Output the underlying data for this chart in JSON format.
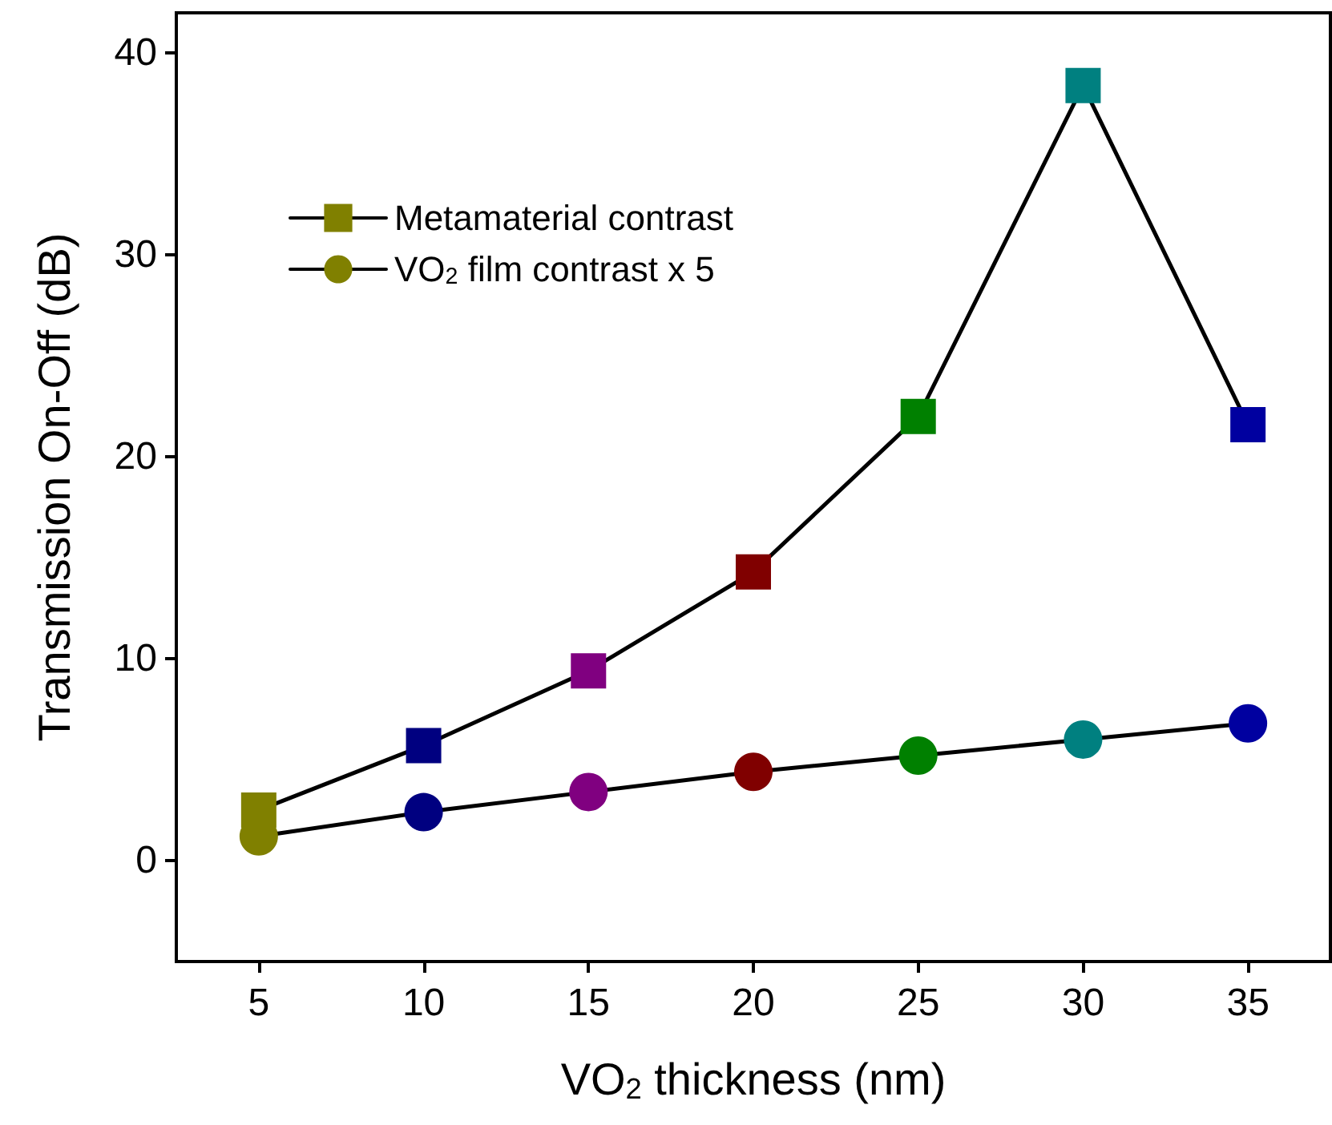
{
  "chart_data": {
    "type": "line",
    "xlabel": "VO$_{2}$ thickness (nm)",
    "ylabel": "Transmission On-Off (dB)",
    "x": [
      5,
      10,
      15,
      20,
      25,
      30,
      35
    ],
    "series": [
      {
        "name": "Metamaterial contrast",
        "color": "#000000",
        "marker": "square",
        "colors": [
          "#808000",
          "#000080",
          "#800080",
          "#800000",
          "#008000",
          "#008080",
          "#0000a0"
        ],
        "values": [
          2.5,
          5.7,
          9.4,
          14.3,
          22.0,
          38.4,
          21.6
        ]
      },
      {
        "name": "VO$_{2}$ film contrast x 5",
        "color": "#000000",
        "marker": "circle",
        "colors": [
          "#808000",
          "#000080",
          "#800080",
          "#800000",
          "#008000",
          "#008080",
          "#0000a0"
        ],
        "values": [
          1.2,
          2.4,
          3.4,
          4.4,
          5.2,
          6.0,
          6.8
        ]
      }
    ],
    "xlim": [
      2.5,
      37.5
    ],
    "xticks": [
      5,
      10,
      15,
      20,
      25,
      30,
      35
    ],
    "ylim": [
      -5,
      42
    ],
    "yticks": [
      0,
      10,
      20,
      30,
      40
    ],
    "legend": "top left",
    "grid": false,
    "line_style": "solid"
  }
}
